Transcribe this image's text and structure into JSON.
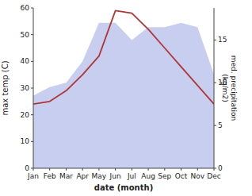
{
  "chart_data": {
    "type": "line",
    "categories": [
      "Jan",
      "Feb",
      "Mar",
      "Apr",
      "May",
      "Jun",
      "Jul",
      "Aug",
      "Sep",
      "Oct",
      "Nov",
      "Dec"
    ],
    "series": [
      {
        "type": "area",
        "color": "#c8cef0",
        "axis": "y2",
        "values": [
          8.5,
          9.5,
          10,
          12.5,
          17,
          17,
          15,
          16.5,
          16.5,
          17,
          16.5,
          11
        ]
      },
      {
        "type": "line",
        "color": "#b03535",
        "values": [
          24,
          25,
          29,
          35,
          42,
          59,
          58,
          52,
          45,
          38,
          31,
          24
        ]
      }
    ],
    "ylim": [
      0,
      60
    ],
    "yticks": [
      0,
      10,
      20,
      30,
      40,
      50,
      60
    ],
    "y2lim": [
      0,
      18.75
    ],
    "y2ticks": [
      0,
      5,
      10,
      15
    ],
    "xlabel": "date (month)",
    "ylabel": "max temp (C)",
    "y2label": "med. precipitation\n(kg/m2)",
    "grid": false
  }
}
